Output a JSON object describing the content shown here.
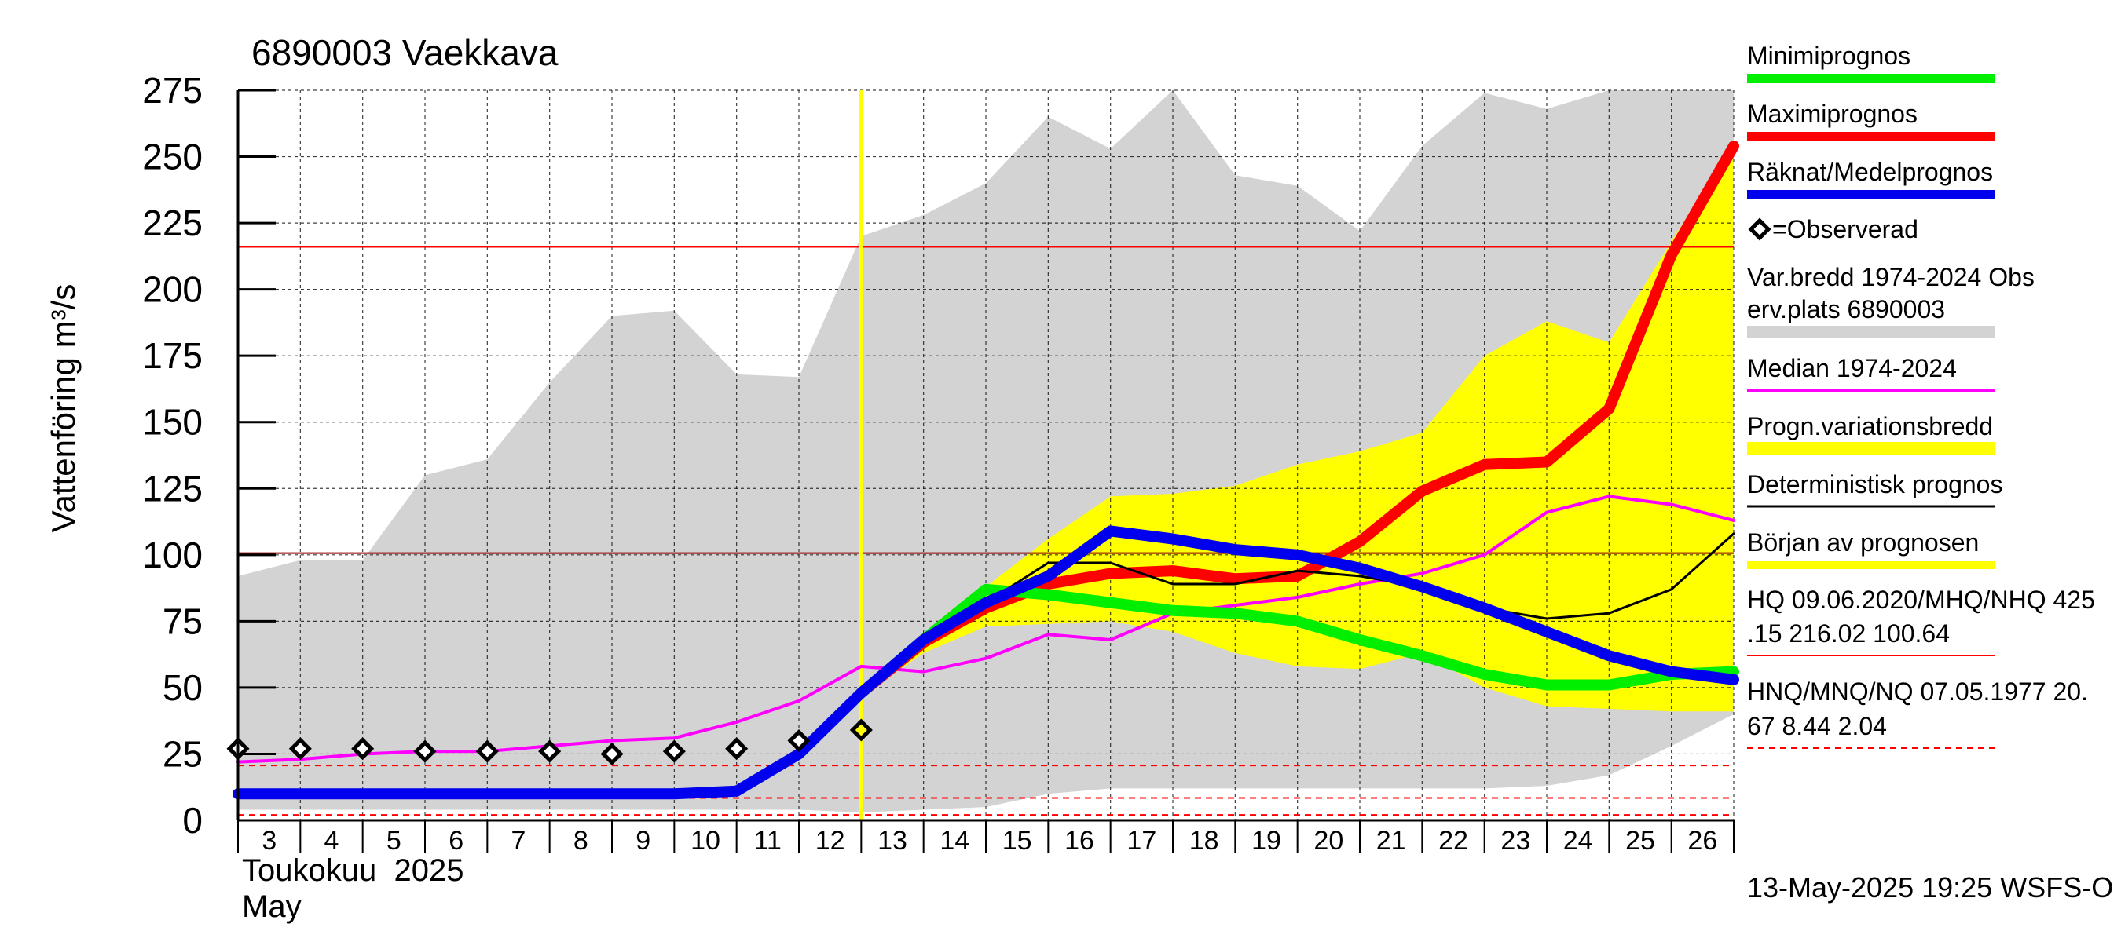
{
  "title": "6890003 Vaekkava",
  "ylabel": "Vattenföring m³/s",
  "x_month_label": "Toukokuu  2025",
  "x_month_label2": "May",
  "footer": "13-May-2025 19:25 WSFS-O",
  "colors": {
    "range_band": "#d3d3d3",
    "prog_band": "#ffff00",
    "min": "#00ee00",
    "max": "#ff0000",
    "mean": "#0000ee",
    "median": "#ff00ff",
    "deterministic": "#000000",
    "forecast_start": "#ffff00",
    "hq_line": "#ff0000",
    "mhq_line": "#8b0000"
  },
  "legend": [
    {
      "label": "Minimiprognos",
      "key": "min"
    },
    {
      "label": "Maximiprognos",
      "key": "max"
    },
    {
      "label": "Räknat/Medelprognos",
      "key": "mean"
    },
    {
      "label": "=Observerad",
      "key": "obs"
    },
    {
      "label": "Var.bredd 1974-2024   Obs",
      "label2": "erv.plats 6890003",
      "key": "range_band"
    },
    {
      "label": "Median 1974-2024",
      "key": "median"
    },
    {
      "label": "Progn.variationsbredd",
      "key": "prog_band"
    },
    {
      "label": "Deterministisk prognos",
      "key": "deterministic"
    },
    {
      "label": "Början av prognosen",
      "key": "forecast_start"
    },
    {
      "label": "HQ 09.06.2020/MHQ/NHQ 425",
      "label2": ".15 216.02 100.64",
      "key": "hq"
    },
    {
      "label": "HNQ/MNQ/NQ 07.05.1977 20.",
      "label2": "67 8.44 2.04",
      "key": "nq"
    }
  ],
  "chart_data": {
    "type": "line",
    "x_tick_labels": [
      "3",
      "4",
      "5",
      "6",
      "7",
      "8",
      "9",
      "10",
      "11",
      "12",
      "13",
      "14",
      "15",
      "16",
      "17",
      "18",
      "19",
      "20",
      "21",
      "22",
      "23",
      "24",
      "25",
      "26"
    ],
    "xlim": [
      3,
      27
    ],
    "ylim": [
      0,
      275
    ],
    "y_ticks": [
      0,
      25,
      50,
      75,
      100,
      125,
      150,
      175,
      200,
      225,
      250,
      275
    ],
    "grid": true,
    "forecast_start_x": 13,
    "reference_lines": {
      "HQ": 425.15,
      "MHQ": 216.02,
      "NHQ": 100.64,
      "HNQ": 20.67,
      "MNQ": 8.44,
      "NQ": 2.04
    },
    "range_band_x": [
      3,
      4,
      5,
      6,
      7,
      8,
      9,
      10,
      11,
      12,
      13,
      14,
      15,
      16,
      17,
      18,
      19,
      20,
      21,
      22,
      23,
      24,
      25,
      26,
      27
    ],
    "range_band_upper": [
      92,
      98,
      98,
      130,
      136,
      165,
      190,
      192,
      168,
      167,
      220,
      228,
      240,
      265,
      253,
      275,
      243,
      239,
      222,
      254,
      274,
      268,
      275,
      275,
      275
    ],
    "range_band_lower": [
      4,
      4,
      4,
      4,
      4,
      4,
      4,
      4,
      4,
      4,
      3,
      4,
      5,
      10,
      12,
      12,
      12,
      12,
      12,
      12,
      12,
      13,
      17,
      28,
      40
    ],
    "prog_band_x": [
      13,
      14,
      15,
      16,
      17,
      18,
      19,
      20,
      21,
      22,
      23,
      24,
      25,
      26,
      27
    ],
    "prog_band_upper": [
      47,
      68,
      88,
      106,
      122,
      123,
      126,
      134,
      139,
      146,
      175,
      188,
      180,
      218,
      255
    ],
    "prog_band_lower": [
      47,
      63,
      73,
      74,
      75,
      71,
      63,
      58,
      57,
      63,
      50,
      43,
      42,
      41,
      41
    ],
    "series": [
      {
        "name": "Median 1974-2024",
        "key": "median",
        "x": [
          3,
          4,
          5,
          6,
          7,
          8,
          9,
          10,
          11,
          12,
          13,
          14,
          15,
          16,
          17,
          18,
          19,
          20,
          21,
          22,
          23,
          24,
          25,
          26,
          27
        ],
        "values": [
          22,
          23,
          25,
          26,
          26,
          28,
          30,
          31,
          37,
          45,
          58,
          56,
          61,
          70,
          68,
          78,
          81,
          84,
          89,
          93,
          100,
          116,
          122,
          119,
          113
        ]
      },
      {
        "name": "Maximiprognos",
        "key": "max",
        "x": [
          13,
          14,
          15,
          16,
          17,
          18,
          19,
          20,
          21,
          22,
          23,
          24,
          25,
          26,
          27
        ],
        "values": [
          48,
          67,
          80,
          89,
          93,
          94,
          91,
          92,
          105,
          124,
          134,
          135,
          155,
          213,
          254
        ]
      },
      {
        "name": "Minimiprognos",
        "key": "min",
        "x": [
          13,
          14,
          15,
          16,
          17,
          18,
          19,
          20,
          21,
          22,
          23,
          24,
          25,
          26,
          27
        ],
        "values": [
          48,
          68,
          87,
          85,
          82,
          79,
          78,
          75,
          68,
          62,
          55,
          51,
          51,
          55,
          56
        ]
      },
      {
        "name": "Deterministisk prognos",
        "key": "deterministic",
        "x": [
          13,
          14,
          15,
          16,
          17,
          18,
          19,
          20,
          21,
          22,
          23,
          24,
          25,
          26,
          27
        ],
        "values": [
          48,
          67,
          82,
          97,
          97,
          89,
          89,
          94,
          92,
          88,
          80,
          76,
          78,
          87,
          108
        ]
      },
      {
        "name": "Räknat/Medelprognos",
        "key": "mean",
        "x": [
          3,
          4,
          5,
          6,
          7,
          8,
          9,
          10,
          11,
          12,
          13,
          14,
          15,
          16,
          17,
          18,
          19,
          20,
          21,
          22,
          23,
          24,
          25,
          26,
          27
        ],
        "values": [
          10,
          10,
          10,
          10,
          10,
          10,
          10,
          10,
          11,
          25,
          48,
          68,
          82,
          92,
          109,
          106,
          102,
          100,
          95,
          88,
          80,
          71,
          62,
          56,
          53
        ]
      }
    ],
    "observed": {
      "x": [
        3,
        4,
        5,
        6,
        7,
        8,
        9,
        10,
        11,
        12,
        13
      ],
      "values": [
        27,
        27,
        27,
        26,
        26,
        26,
        25,
        26,
        27,
        30,
        34
      ]
    }
  }
}
